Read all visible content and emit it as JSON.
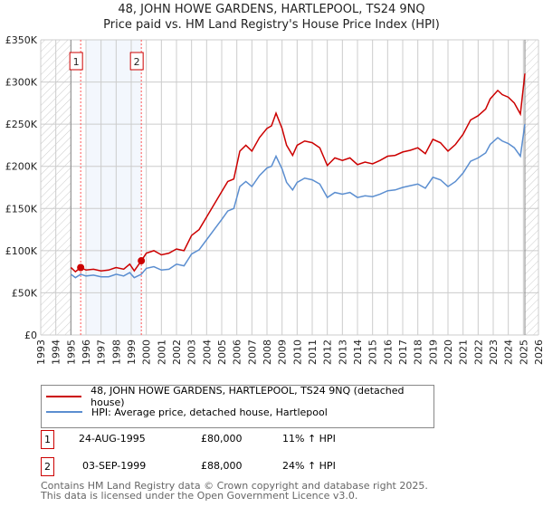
{
  "chart_data": {
    "type": "line",
    "title": "48, JOHN HOWE GARDENS, HARTLEPOOL, TS24 9NQ",
    "subtitle": "Price paid vs. HM Land Registry's House Price Index (HPI)",
    "xlim": [
      1993,
      2026
    ],
    "ylim": [
      0,
      350000
    ],
    "x_ticks": [
      "1993",
      "1994",
      "1995",
      "1996",
      "1997",
      "1998",
      "1999",
      "2000",
      "2001",
      "2002",
      "2003",
      "2004",
      "2005",
      "2006",
      "2007",
      "2008",
      "2009",
      "2010",
      "2011",
      "2012",
      "2013",
      "2014",
      "2015",
      "2016",
      "2017",
      "2018",
      "2019",
      "2020",
      "2021",
      "2022",
      "2023",
      "2024",
      "2025",
      "2026"
    ],
    "y_ticks": [
      {
        "v": 0,
        "label": "£0"
      },
      {
        "v": 50000,
        "label": "£50K"
      },
      {
        "v": 100000,
        "label": "£100K"
      },
      {
        "v": 150000,
        "label": "£150K"
      },
      {
        "v": 200000,
        "label": "£200K"
      },
      {
        "v": 250000,
        "label": "£250K"
      },
      {
        "v": 300000,
        "label": "£300K"
      },
      {
        "v": 350000,
        "label": "£350K"
      }
    ],
    "grid": true,
    "series": [
      {
        "name": "48, JOHN HOWE GARDENS, HARTLEPOOL, TS24 9NQ (detached house)",
        "color": "#cc0000",
        "x": [
          1995,
          1995.3,
          1995.65,
          1996,
          1996.5,
          1997,
          1997.5,
          1998,
          1998.5,
          1998.9,
          1999.2,
          1999.67,
          2000,
          2000.5,
          2001,
          2001.5,
          2002,
          2002.5,
          2003,
          2003.5,
          2004,
          2004.5,
          2005,
          2005.4,
          2005.8,
          2006.2,
          2006.6,
          2007,
          2007.5,
          2008,
          2008.3,
          2008.6,
          2009,
          2009.3,
          2009.7,
          2010,
          2010.5,
          2011,
          2011.5,
          2012,
          2012.5,
          2013,
          2013.5,
          2014,
          2014.5,
          2015,
          2015.5,
          2016,
          2016.5,
          2017,
          2017.5,
          2018,
          2018.5,
          2019,
          2019.5,
          2020,
          2020.5,
          2021,
          2021.5,
          2022,
          2022.5,
          2022.8,
          2023.3,
          2023.6,
          2024,
          2024.4,
          2024.8,
          2025.1
        ],
        "y": [
          80000,
          75000,
          80000,
          77000,
          78000,
          76000,
          77000,
          80000,
          78000,
          84000,
          76000,
          88000,
          97000,
          100000,
          95000,
          97000,
          102000,
          100000,
          118000,
          125000,
          140000,
          155000,
          170000,
          182000,
          185000,
          218000,
          225000,
          218000,
          234000,
          245000,
          248000,
          263000,
          245000,
          225000,
          213000,
          225000,
          230000,
          228000,
          222000,
          201000,
          210000,
          207000,
          210000,
          202000,
          205000,
          203000,
          207000,
          212000,
          213000,
          217000,
          219000,
          222000,
          215000,
          232000,
          228000,
          218000,
          226000,
          238000,
          255000,
          260000,
          268000,
          280000,
          290000,
          285000,
          282000,
          275000,
          262000,
          310000
        ]
      },
      {
        "name": "HPI: Average price, detached house, Hartlepool",
        "color": "#5b8ed0",
        "x": [
          1995,
          1995.3,
          1995.65,
          1996,
          1996.5,
          1997,
          1997.5,
          1998,
          1998.5,
          1998.9,
          1999.2,
          1999.67,
          2000,
          2000.5,
          2001,
          2001.5,
          2002,
          2002.5,
          2003,
          2003.5,
          2004,
          2004.5,
          2005,
          2005.4,
          2005.8,
          2006.2,
          2006.6,
          2007,
          2007.5,
          2008,
          2008.3,
          2008.6,
          2009,
          2009.3,
          2009.7,
          2010,
          2010.5,
          2011,
          2011.5,
          2012,
          2012.5,
          2013,
          2013.5,
          2014,
          2014.5,
          2015,
          2015.5,
          2016,
          2016.5,
          2017,
          2017.5,
          2018,
          2018.5,
          2019,
          2019.5,
          2020,
          2020.5,
          2021,
          2021.5,
          2022,
          2022.5,
          2022.8,
          2023.3,
          2023.6,
          2024,
          2024.4,
          2024.8,
          2025.1
        ],
        "y": [
          72000,
          68000,
          72000,
          70000,
          71000,
          69000,
          69000,
          72000,
          70000,
          74000,
          68000,
          72000,
          79000,
          81000,
          77000,
          78000,
          84000,
          82000,
          96000,
          101000,
          113000,
          125000,
          137000,
          147000,
          150000,
          176000,
          182000,
          176000,
          189000,
          198000,
          200000,
          212000,
          197000,
          181000,
          172000,
          181000,
          186000,
          184000,
          179000,
          163000,
          169000,
          167000,
          169000,
          163000,
          165000,
          164000,
          167000,
          171000,
          172000,
          175000,
          177000,
          179000,
          174000,
          187000,
          184000,
          176000,
          182000,
          192000,
          206000,
          210000,
          216000,
          226000,
          234000,
          230000,
          227000,
          222000,
          212000,
          250000
        ]
      }
    ],
    "sales": [
      {
        "label": "1",
        "x": 1995.65,
        "y": 80000
      },
      {
        "label": "2",
        "x": 1999.67,
        "y": 88000
      }
    ]
  },
  "legend": {
    "property": "48, JOHN HOWE GARDENS, HARTLEPOOL, TS24 9NQ (detached house)",
    "hpi": "HPI: Average price, detached house, Hartlepool"
  },
  "transactions": [
    {
      "num": "1",
      "date": "24-AUG-1995",
      "price": "£80,000",
      "hpi": "11% ↑ HPI"
    },
    {
      "num": "2",
      "date": "03-SEP-1999",
      "price": "£88,000",
      "hpi": "24% ↑ HPI"
    }
  ],
  "footer": {
    "line1": "Contains HM Land Registry data © Crown copyright and database right 2025.",
    "line2": "This data is licensed under the Open Government Licence v3.0."
  }
}
